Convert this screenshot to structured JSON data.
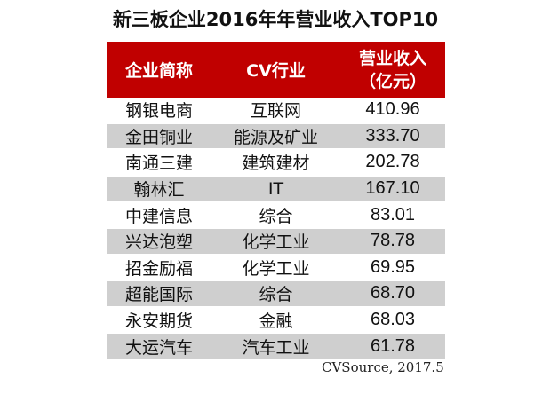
{
  "title": "新三板企业2016年年营业收入TOP10",
  "headers": {
    "company": "企业简称",
    "industry": "CV行业",
    "revenue_line1": "营业收入",
    "revenue_line2": "（亿元）"
  },
  "rows": [
    {
      "company": "钢银电商",
      "industry": "互联网",
      "revenue": "410.96"
    },
    {
      "company": "金田铜业",
      "industry": "能源及矿业",
      "revenue": "333.70"
    },
    {
      "company": "南通三建",
      "industry": "建筑建材",
      "revenue": "202.78"
    },
    {
      "company": "翰林汇",
      "industry": "IT",
      "revenue": "167.10"
    },
    {
      "company": "中建信息",
      "industry": "综合",
      "revenue": "83.01"
    },
    {
      "company": "兴达泡塑",
      "industry": "化学工业",
      "revenue": "78.78"
    },
    {
      "company": "招金励福",
      "industry": "化学工业",
      "revenue": "69.95"
    },
    {
      "company": "超能国际",
      "industry": "综合",
      "revenue": "68.70"
    },
    {
      "company": "永安期货",
      "industry": "金融",
      "revenue": "68.03"
    },
    {
      "company": "大运汽车",
      "industry": "汽车工业",
      "revenue": "61.78"
    }
  ],
  "source": "CVSource, 2017.5",
  "colors": {
    "header_bg": "#c00000",
    "stripe_bg": "#cfcfcf",
    "header_text": "#ffffff"
  }
}
